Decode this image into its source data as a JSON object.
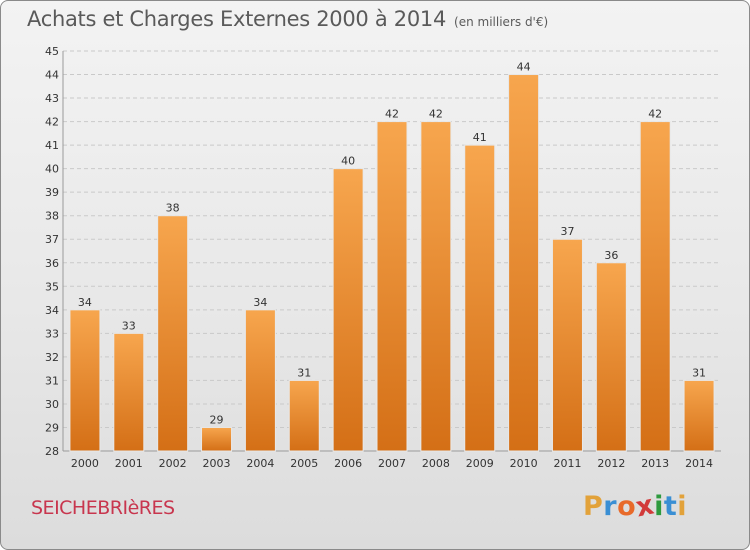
{
  "title": "Achats et Charges Externes 2000 à 2014",
  "subtitle": "(en milliers d'€)",
  "commune": "SEICHEBRIèRES",
  "logo": {
    "letters": [
      "P",
      "r",
      "o",
      "x",
      "i",
      "t",
      "i"
    ],
    "colors": [
      "#e2a23a",
      "#3a8fd4",
      "#e86a2a",
      "#d23a3a",
      "#2e9a3e",
      "#3a8fd4",
      "#e2a23a"
    ]
  },
  "colors": {
    "bar_top": "#f7a64e",
    "bar_bottom": "#d46f16",
    "grid": "#c9c9c9",
    "axis_text": "#333333"
  },
  "chart_data": {
    "type": "bar",
    "categories": [
      "2000",
      "2001",
      "2002",
      "2003",
      "2004",
      "2005",
      "2006",
      "2007",
      "2008",
      "2009",
      "2010",
      "2011",
      "2012",
      "2013",
      "2014"
    ],
    "values": [
      34,
      33,
      38,
      29,
      34,
      31,
      40,
      42,
      42,
      41,
      44,
      37,
      36,
      42,
      31
    ],
    "ylim": [
      28,
      45
    ],
    "yticks": [
      28,
      29,
      30,
      31,
      32,
      33,
      34,
      35,
      36,
      37,
      38,
      39,
      40,
      41,
      42,
      43,
      44,
      45
    ],
    "grid": true,
    "data_labels": true
  }
}
